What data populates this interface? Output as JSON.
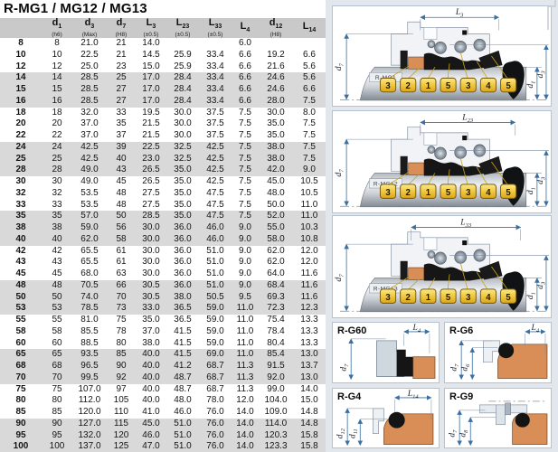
{
  "title": "R-MG1 / MG12 / MG13",
  "table": {
    "headers": [
      {
        "sym": "",
        "sub": "",
        "note": ""
      },
      {
        "sym": "d",
        "sub": "1",
        "note": "(h6)"
      },
      {
        "sym": "d",
        "sub": "3",
        "note": "(Max)"
      },
      {
        "sym": "d",
        "sub": "7",
        "note": "(H8)"
      },
      {
        "sym": "L",
        "sub": "3",
        "note": "(±0.5)"
      },
      {
        "sym": "L",
        "sub": "23",
        "note": "(±0.5)"
      },
      {
        "sym": "L",
        "sub": "33",
        "note": "(±0.5)"
      },
      {
        "sym": "L",
        "sub": "4",
        "note": ""
      },
      {
        "sym": "d",
        "sub": "12",
        "note": "(H8)"
      },
      {
        "sym": "L",
        "sub": "14",
        "note": ""
      }
    ],
    "rows": [
      [
        "8",
        "8",
        "21.0",
        "21",
        "14.0",
        "",
        "",
        "6.0",
        "",
        ""
      ],
      [
        "10",
        "10",
        "22.5",
        "21",
        "14.5",
        "25.9",
        "33.4",
        "6.6",
        "19.2",
        "6.6"
      ],
      [
        "12",
        "12",
        "25.0",
        "23",
        "15.0",
        "25.9",
        "33.4",
        "6.6",
        "21.6",
        "5.6"
      ],
      [
        "14",
        "14",
        "28.5",
        "25",
        "17.0",
        "28.4",
        "33.4",
        "6.6",
        "24.6",
        "5.6"
      ],
      [
        "15",
        "15",
        "28.5",
        "27",
        "17.0",
        "28.4",
        "33.4",
        "6.6",
        "24.6",
        "6.6"
      ],
      [
        "16",
        "16",
        "28.5",
        "27",
        "17.0",
        "28.4",
        "33.4",
        "6.6",
        "28.0",
        "7.5"
      ],
      [
        "18",
        "18",
        "32.0",
        "33",
        "19.5",
        "30.0",
        "37.5",
        "7.5",
        "30.0",
        "8.0"
      ],
      [
        "20",
        "20",
        "37.0",
        "35",
        "21.5",
        "30.0",
        "37.5",
        "7.5",
        "35.0",
        "7.5"
      ],
      [
        "22",
        "22",
        "37.0",
        "37",
        "21.5",
        "30.0",
        "37.5",
        "7.5",
        "35.0",
        "7.5"
      ],
      [
        "24",
        "24",
        "42.5",
        "39",
        "22.5",
        "32.5",
        "42.5",
        "7.5",
        "38.0",
        "7.5"
      ],
      [
        "25",
        "25",
        "42.5",
        "40",
        "23.0",
        "32.5",
        "42.5",
        "7.5",
        "38.0",
        "7.5"
      ],
      [
        "28",
        "28",
        "49.0",
        "43",
        "26.5",
        "35.0",
        "42.5",
        "7.5",
        "42.0",
        "9.0"
      ],
      [
        "30",
        "30",
        "49.0",
        "45",
        "26.5",
        "35.0",
        "42.5",
        "7.5",
        "45.0",
        "10.5"
      ],
      [
        "32",
        "32",
        "53.5",
        "48",
        "27.5",
        "35.0",
        "47.5",
        "7.5",
        "48.0",
        "10.5"
      ],
      [
        "33",
        "33",
        "53.5",
        "48",
        "27.5",
        "35.0",
        "47.5",
        "7.5",
        "50.0",
        "11.0"
      ],
      [
        "35",
        "35",
        "57.0",
        "50",
        "28.5",
        "35.0",
        "47.5",
        "7.5",
        "52.0",
        "11.0"
      ],
      [
        "38",
        "38",
        "59.0",
        "56",
        "30.0",
        "36.0",
        "46.0",
        "9.0",
        "55.0",
        "10.3"
      ],
      [
        "40",
        "40",
        "62.0",
        "58",
        "30.0",
        "36.0",
        "46.0",
        "9.0",
        "58.0",
        "10.8"
      ],
      [
        "42",
        "42",
        "65.5",
        "61",
        "30.0",
        "36.0",
        "51.0",
        "9.0",
        "62.0",
        "12.0"
      ],
      [
        "43",
        "43",
        "65.5",
        "61",
        "30.0",
        "36.0",
        "51.0",
        "9.0",
        "62.0",
        "12.0"
      ],
      [
        "45",
        "45",
        "68.0",
        "63",
        "30.0",
        "36.0",
        "51.0",
        "9.0",
        "64.0",
        "11.6"
      ],
      [
        "48",
        "48",
        "70.5",
        "66",
        "30.5",
        "36.0",
        "51.0",
        "9.0",
        "68.4",
        "11.6"
      ],
      [
        "50",
        "50",
        "74.0",
        "70",
        "30.5",
        "38.0",
        "50.5",
        "9.5",
        "69.3",
        "11.6"
      ],
      [
        "53",
        "53",
        "78.5",
        "73",
        "33.0",
        "36.5",
        "59.0",
        "11.0",
        "72.3",
        "12.3"
      ],
      [
        "55",
        "55",
        "81.0",
        "75",
        "35.0",
        "36.5",
        "59.0",
        "11.0",
        "75.4",
        "13.3"
      ],
      [
        "58",
        "58",
        "85.5",
        "78",
        "37.0",
        "41.5",
        "59.0",
        "11.0",
        "78.4",
        "13.3"
      ],
      [
        "60",
        "60",
        "88.5",
        "80",
        "38.0",
        "41.5",
        "59.0",
        "11.0",
        "80.4",
        "13.3"
      ],
      [
        "65",
        "65",
        "93.5",
        "85",
        "40.0",
        "41.5",
        "69.0",
        "11.0",
        "85.4",
        "13.0"
      ],
      [
        "68",
        "68",
        "96.5",
        "90",
        "40.0",
        "41.2",
        "68.7",
        "11.3",
        "91.5",
        "13.7"
      ],
      [
        "70",
        "70",
        "99.5",
        "92",
        "40.0",
        "48.7",
        "68.7",
        "11.3",
        "92.0",
        "13.0"
      ],
      [
        "75",
        "75",
        "107.0",
        "97",
        "40.0",
        "48.7",
        "68.7",
        "11.3",
        "99.0",
        "14.0"
      ],
      [
        "80",
        "80",
        "112.0",
        "105",
        "40.0",
        "48.0",
        "78.0",
        "12.0",
        "104.0",
        "15.0"
      ],
      [
        "85",
        "85",
        "120.0",
        "110",
        "41.0",
        "46.0",
        "76.0",
        "14.0",
        "109.0",
        "14.8"
      ],
      [
        "90",
        "90",
        "127.0",
        "115",
        "45.0",
        "51.0",
        "76.0",
        "14.0",
        "114.0",
        "14.8"
      ],
      [
        "95",
        "95",
        "132.0",
        "120",
        "46.0",
        "51.0",
        "76.0",
        "14.0",
        "120.3",
        "15.8"
      ],
      [
        "100",
        "100",
        "137.0",
        "125",
        "47.0",
        "51.0",
        "76.0",
        "14.0",
        "123.3",
        "15.8"
      ]
    ]
  },
  "diagrams": [
    {
      "id": "mg1",
      "label": "R-MG1",
      "dim_top_sym": "L",
      "dim_top_sub": "3",
      "dim_left_sym": "d",
      "dim_left_sub": "7",
      "dim_right": [
        [
          "d",
          "1"
        ],
        [
          "d",
          "3"
        ]
      ],
      "callouts": [
        "3",
        "2",
        "1",
        "5",
        "3",
        "4",
        "5"
      ]
    },
    {
      "id": "mg12",
      "label": "R-MG12",
      "dim_top_sym": "L",
      "dim_top_sub": "23",
      "dim_left_sym": "d",
      "dim_left_sub": "7",
      "dim_right": [
        [
          "d",
          "1"
        ],
        [
          "d",
          "3"
        ]
      ],
      "callouts": [
        "3",
        "2",
        "1",
        "5",
        "3",
        "4",
        "5"
      ]
    },
    {
      "id": "mg13",
      "label": "R-MG13",
      "dim_top_sym": "L",
      "dim_top_sub": "33",
      "dim_left_sym": "d",
      "dim_left_sub": "7",
      "dim_right": [
        [
          "d",
          "1"
        ],
        [
          "d",
          "3"
        ]
      ],
      "callouts": [
        "3",
        "2",
        "1",
        "5",
        "3",
        "4",
        "5"
      ]
    }
  ],
  "seat_diagrams": [
    {
      "id": "g60",
      "label": "R-G60",
      "dim_top_sym": "L",
      "dim_top_sub": "4",
      "dims_left": [
        [
          "d",
          "7"
        ]
      ]
    },
    {
      "id": "g6",
      "label": "R-G6",
      "dim_top_sym": "L",
      "dim_top_sub": "4",
      "dims_left": [
        [
          "d",
          "7"
        ],
        [
          "d",
          "6"
        ]
      ]
    },
    {
      "id": "g4",
      "label": "R-G4",
      "dim_top_sym": "L",
      "dim_top_sub": "14",
      "dims_left": [
        [
          "d",
          "12"
        ],
        [
          "d",
          "11"
        ]
      ]
    },
    {
      "id": "g9",
      "label": "R-G9",
      "dim_top_sym": "",
      "dim_top_sub": "",
      "dims_left": [
        [
          "d",
          "7"
        ],
        [
          "d",
          "8"
        ]
      ]
    }
  ],
  "colors": {
    "callout_yellow": "#f0c83e",
    "part_orange": "#d98d57",
    "part_olive": "#b9ba80",
    "dim_blue": "#3a6fa0",
    "right_bg": "#e2e6ed",
    "band_gray": "#d9d9d9",
    "header_gray": "#c9c9c9"
  }
}
